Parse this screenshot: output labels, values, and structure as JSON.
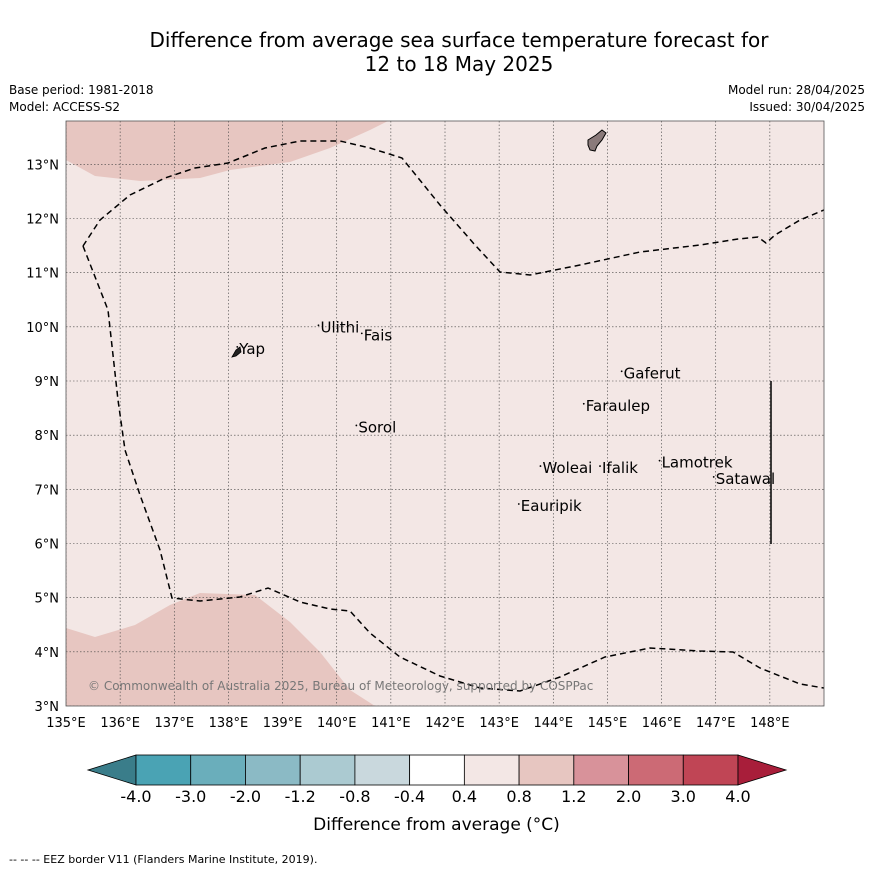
{
  "title_line1": "Difference from average sea surface temperature forecast for",
  "title_line2": "12 to 18 May 2025",
  "base_period": "Base period: 1981-2018",
  "model": "Model: ACCESS-S2",
  "model_run": "Model run: 28/04/2025",
  "issued": "Issued: 30/04/2025",
  "copyright": "© Commonwealth of Australia 2025, Bureau of Meteorology, supported by COSPPac",
  "footnote": "--  --  -- EEZ border V11 (Flanders Marine Institute, 2019).",
  "map": {
    "lon_range": [
      135,
      149
    ],
    "lat_range": [
      3,
      13.8
    ],
    "lon_ticks": [
      "135°E",
      "136°E",
      "137°E",
      "138°E",
      "139°E",
      "140°E",
      "141°E",
      "142°E",
      "143°E",
      "144°E",
      "145°E",
      "146°E",
      "147°E",
      "148°E"
    ],
    "lat_ticks": [
      "3°N",
      "4°N",
      "5°N",
      "6°N",
      "7°N",
      "8°N",
      "9°N",
      "10°N",
      "11°N",
      "12°N",
      "13°N"
    ],
    "background_anomaly": "0.4 to 0.8",
    "places": [
      {
        "name": "Yap",
        "lon": 138.2,
        "lat": 9.5
      },
      {
        "name": "Ulithi",
        "lon": 139.7,
        "lat": 9.9
      },
      {
        "name": "Fais",
        "lon": 140.5,
        "lat": 9.75
      },
      {
        "name": "Gaferut",
        "lon": 145.3,
        "lat": 9.05
      },
      {
        "name": "Faraulep",
        "lon": 144.6,
        "lat": 8.45
      },
      {
        "name": "Sorol",
        "lon": 140.4,
        "lat": 8.05
      },
      {
        "name": "Woleai",
        "lon": 143.8,
        "lat": 7.3
      },
      {
        "name": "Ifalik",
        "lon": 144.9,
        "lat": 7.3
      },
      {
        "name": "Lamotrek",
        "lon": 146.0,
        "lat": 7.4
      },
      {
        "name": "Satawal",
        "lon": 147.0,
        "lat": 7.1
      },
      {
        "name": "Eauripik",
        "lon": 143.4,
        "lat": 6.6
      }
    ]
  },
  "colorbar": {
    "title": "Difference from average (°C)",
    "ticks": [
      "-4.0",
      "-3.0",
      "-2.0",
      "-1.2",
      "-0.8",
      "-0.4",
      "0.4",
      "0.8",
      "1.2",
      "2.0",
      "3.0",
      "4.0"
    ],
    "colors": [
      "#3a7d8a",
      "#4aa3b4",
      "#6aaebb",
      "#8bbac5",
      "#abcad1",
      "#c9d8dd",
      "#ffffff",
      "#f3e7e5",
      "#e7c6c1",
      "#d8929a",
      "#cc6a75",
      "#c04555",
      "#a81e3a"
    ]
  },
  "colors": {
    "ocean_background": "#f3e7e5",
    "warm_patch": "#e7c6c1",
    "land": "#8a7a7a"
  }
}
